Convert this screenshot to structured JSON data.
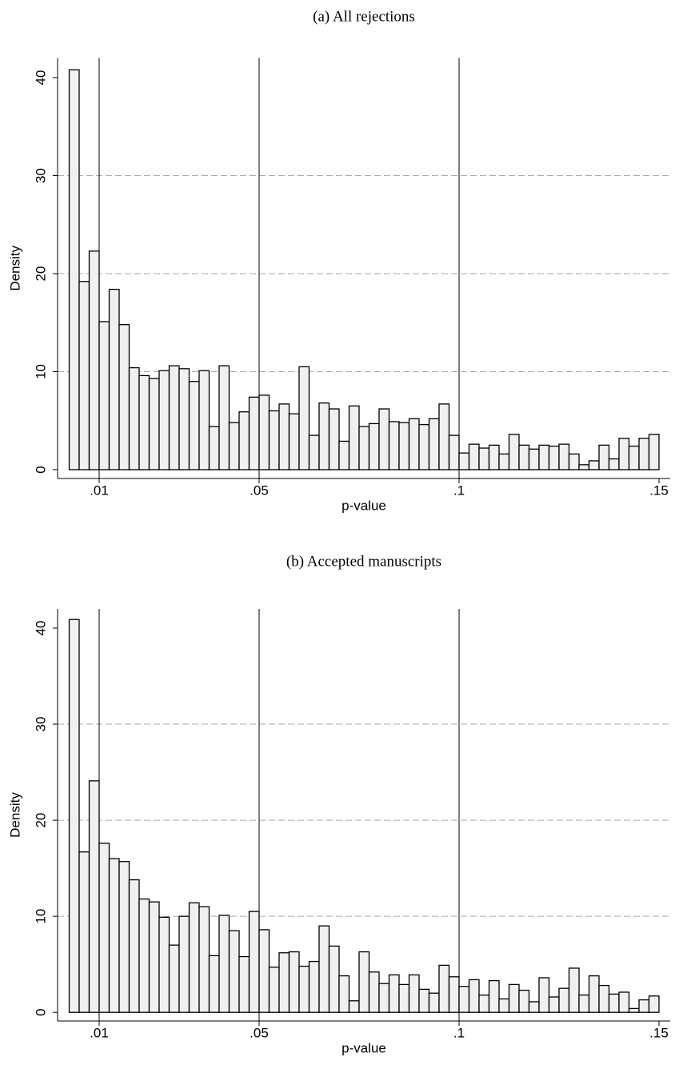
{
  "chart_data": [
    {
      "type": "histogram",
      "title": "(a) All rejections",
      "x_label": "p-value",
      "y_label": "Density",
      "bins": [
        0.0025,
        0.005,
        0.0075,
        0.01,
        0.0125,
        0.015,
        0.0175,
        0.02,
        0.0225,
        0.025,
        0.0275,
        0.03,
        0.0325,
        0.035,
        0.0375,
        0.04,
        0.0425,
        0.045,
        0.0475,
        0.05,
        0.0525,
        0.055,
        0.0575,
        0.06,
        0.0625,
        0.065,
        0.0675,
        0.07,
        0.0725,
        0.075,
        0.0775,
        0.08,
        0.0825,
        0.085,
        0.0875,
        0.09,
        0.0925,
        0.095,
        0.0975,
        0.1,
        0.1025,
        0.105,
        0.1075,
        0.11,
        0.1125,
        0.115,
        0.1175,
        0.12,
        0.1225,
        0.125,
        0.1275,
        0.13,
        0.1325,
        0.135,
        0.1375,
        0.14,
        0.1425,
        0.145,
        0.1475,
        0.15
      ],
      "values": [
        40.8,
        19.2,
        22.3,
        15.1,
        18.4,
        14.8,
        10.4,
        9.6,
        9.3,
        10.1,
        10.6,
        10.3,
        9.0,
        10.1,
        4.4,
        10.6,
        4.8,
        5.9,
        7.4,
        7.6,
        6.0,
        6.7,
        5.7,
        10.5,
        3.5,
        6.8,
        6.2,
        2.9,
        6.5,
        4.4,
        4.7,
        6.2,
        4.9,
        4.8,
        5.2,
        4.6,
        5.2,
        6.7,
        3.5,
        1.7,
        2.6,
        2.2,
        2.5,
        1.6,
        3.6,
        2.5,
        2.1,
        2.5,
        2.4,
        2.6,
        1.6,
        0.5,
        0.9,
        2.5,
        1.1,
        3.2,
        2.4,
        3.2,
        3.6
      ],
      "color": "#f0f0f0",
      "xlim": [
        -0.0004,
        0.1528
      ],
      "ylim": [
        -0.9,
        42
      ],
      "xticks": [
        {
          "value": 0.01,
          "label": ".01"
        },
        {
          "value": 0.05,
          "label": ".05"
        },
        {
          "value": 0.1,
          "label": ".1"
        },
        {
          "value": 0.15,
          "label": ".15"
        }
      ],
      "yticks": [
        0,
        10,
        20,
        30,
        40
      ],
      "grid": true,
      "xlines": [
        0.01,
        0.05,
        0.1
      ]
    },
    {
      "type": "histogram",
      "title": "(b) Accepted manuscripts",
      "x_label": "p-value",
      "y_label": "Density",
      "bins": [
        0.0025,
        0.005,
        0.0075,
        0.01,
        0.0125,
        0.015,
        0.0175,
        0.02,
        0.0225,
        0.025,
        0.0275,
        0.03,
        0.0325,
        0.035,
        0.0375,
        0.04,
        0.0425,
        0.045,
        0.0475,
        0.05,
        0.0525,
        0.055,
        0.0575,
        0.06,
        0.0625,
        0.065,
        0.0675,
        0.07,
        0.0725,
        0.075,
        0.0775,
        0.08,
        0.0825,
        0.085,
        0.0875,
        0.09,
        0.0925,
        0.095,
        0.0975,
        0.1,
        0.1025,
        0.105,
        0.1075,
        0.11,
        0.1125,
        0.115,
        0.1175,
        0.12,
        0.1225,
        0.125,
        0.1275,
        0.13,
        0.1325,
        0.135,
        0.1375,
        0.14,
        0.1425,
        0.145,
        0.1475,
        0.15
      ],
      "values": [
        40.9,
        16.7,
        24.1,
        17.6,
        16.0,
        15.7,
        13.8,
        11.8,
        11.5,
        9.9,
        7.0,
        10.0,
        11.4,
        11.0,
        5.9,
        10.1,
        8.5,
        5.8,
        10.5,
        8.6,
        4.7,
        6.2,
        6.3,
        4.8,
        5.3,
        9.0,
        6.9,
        3.8,
        1.2,
        6.3,
        4.2,
        3.0,
        3.9,
        2.9,
        3.9,
        2.4,
        2.0,
        4.9,
        3.7,
        2.7,
        3.4,
        1.8,
        3.3,
        1.4,
        2.9,
        2.3,
        1.1,
        3.6,
        1.6,
        2.5,
        4.6,
        1.8,
        3.8,
        2.8,
        1.9,
        2.1,
        0.4,
        1.3,
        1.7
      ],
      "color": "#f0f0f0",
      "xlim": [
        -0.0004,
        0.1528
      ],
      "ylim": [
        -0.9,
        42
      ],
      "xticks": [
        {
          "value": 0.01,
          "label": ".01"
        },
        {
          "value": 0.05,
          "label": ".05"
        },
        {
          "value": 0.1,
          "label": ".1"
        },
        {
          "value": 0.15,
          "label": ".15"
        }
      ],
      "yticks": [
        0,
        10,
        20,
        30,
        40
      ],
      "grid": true,
      "xlines": [
        0.01,
        0.05,
        0.1
      ]
    }
  ]
}
